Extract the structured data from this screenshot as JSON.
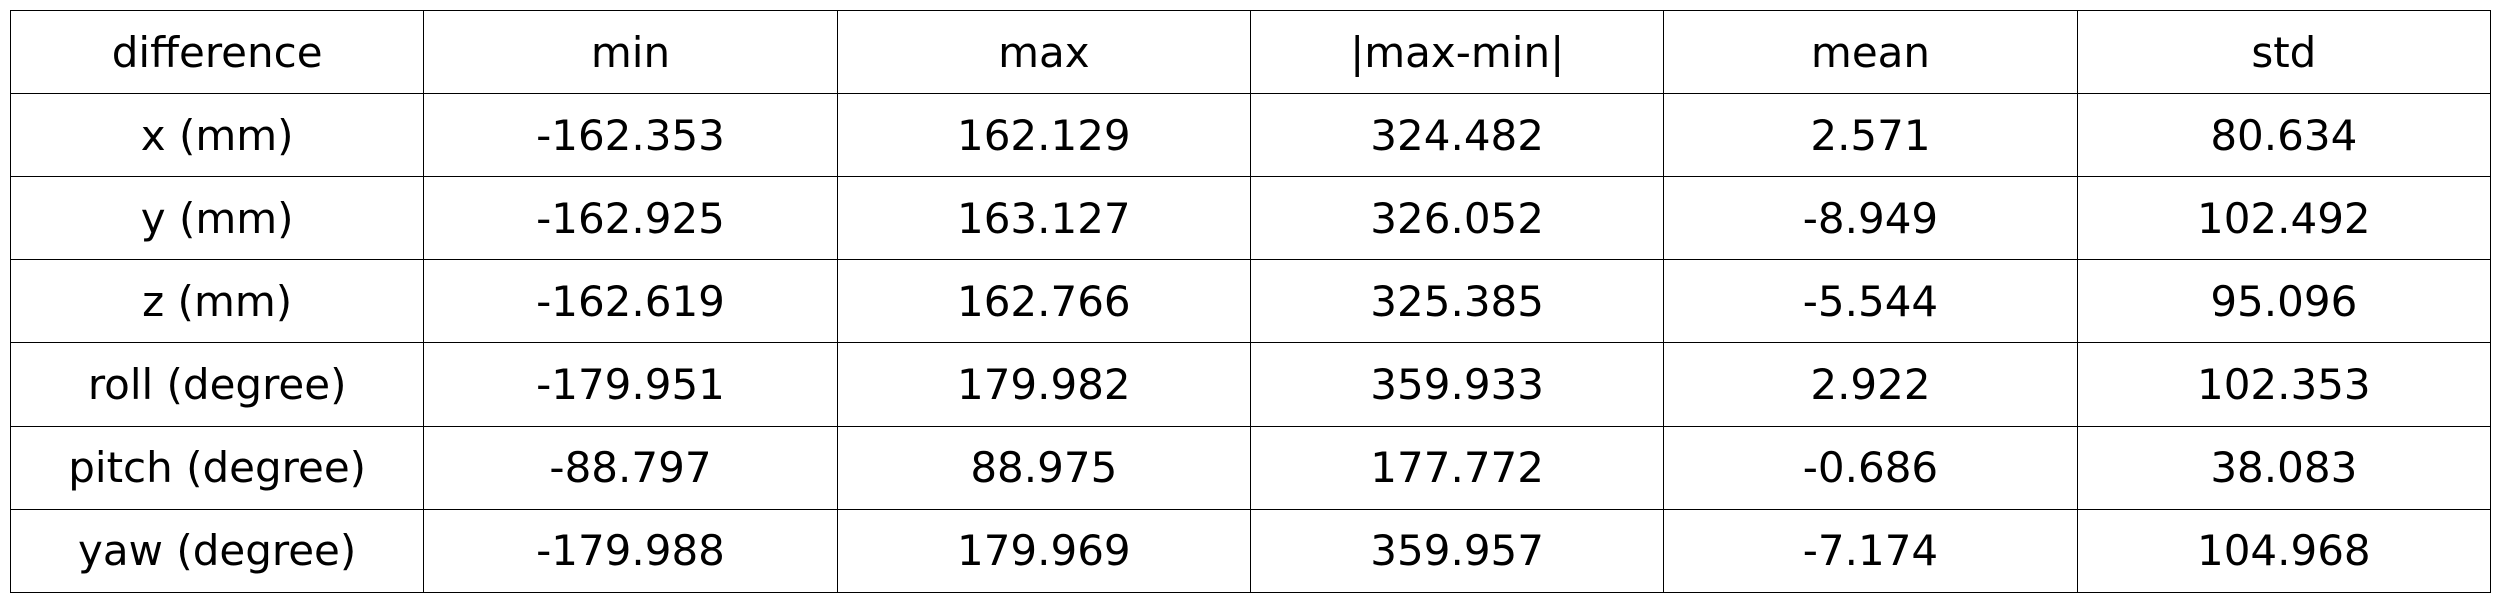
{
  "table": {
    "headers": [
      "difference",
      "min",
      "max",
      "|max-min|",
      "mean",
      "std"
    ],
    "rows": [
      [
        "x (mm)",
        "-162.353",
        "162.129",
        "324.482",
        "2.571",
        "80.634"
      ],
      [
        "y (mm)",
        "-162.925",
        "163.127",
        "326.052",
        "-8.949",
        "102.492"
      ],
      [
        "z (mm)",
        "-162.619",
        "162.766",
        "325.385",
        "-5.544",
        "95.096"
      ],
      [
        "roll (degree)",
        "-179.951",
        "179.982",
        "359.933",
        "2.922",
        "102.353"
      ],
      [
        "pitch (degree)",
        "-88.797",
        "88.975",
        "177.772",
        "-0.686",
        "38.083"
      ],
      [
        "yaw (degree)",
        "-179.988",
        "179.969",
        "359.957",
        "-7.174",
        "104.968"
      ]
    ]
  }
}
